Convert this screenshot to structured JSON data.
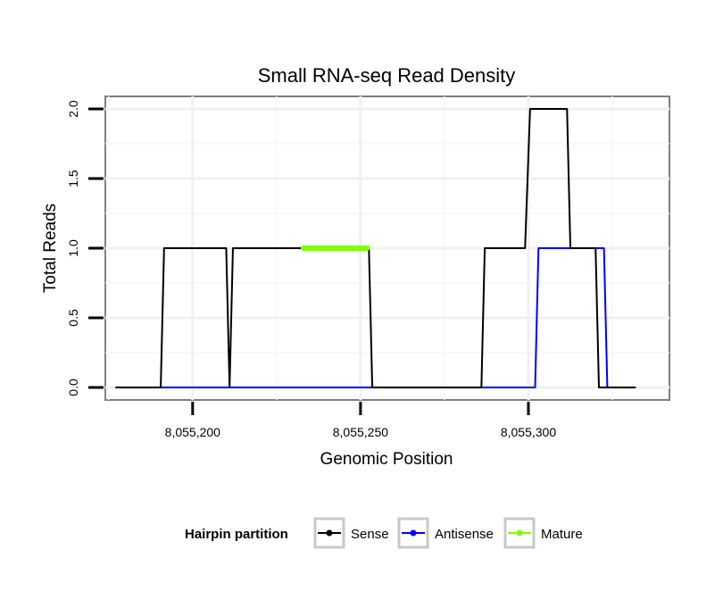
{
  "chart_data": {
    "type": "line",
    "title": "Small RNA-seq Read Density",
    "xlabel": "Genomic Position",
    "ylabel": "Total Reads",
    "xlim": [
      8055174,
      8055342
    ],
    "ylim": [
      -0.09,
      2.09
    ],
    "x_ticks": [
      8055200,
      8055250,
      8055300
    ],
    "x_tick_labels": [
      "8,055,200",
      "8,055,250",
      "8,055,300"
    ],
    "y_ticks": [
      0,
      0.5,
      1,
      1.5,
      2
    ],
    "y_tick_labels": [
      "0.0",
      "0.5",
      "1.0",
      "1.5",
      "2.0"
    ],
    "grid": true,
    "legend": {
      "title": "Hairpin partition",
      "position": "bottom",
      "entries": [
        "Sense",
        "Antisense",
        "Mature"
      ]
    },
    "series": [
      {
        "name": "Sense",
        "color": "#000000",
        "points": [
          [
            8055177,
            0
          ],
          [
            8055190.5,
            0
          ],
          [
            8055191.5,
            1
          ],
          [
            8055210,
            1
          ],
          [
            8055211,
            0
          ],
          [
            8055212,
            1
          ],
          [
            8055252.5,
            1
          ],
          [
            8055253.5,
            0
          ],
          [
            8055286,
            0
          ],
          [
            8055287,
            1
          ],
          [
            8055299,
            1
          ],
          [
            8055300.5,
            2
          ],
          [
            8055311.5,
            2
          ],
          [
            8055312.5,
            1
          ],
          [
            8055320,
            1
          ],
          [
            8055321,
            0
          ],
          [
            8055332,
            0
          ]
        ]
      },
      {
        "name": "Antisense",
        "color": "#0000ff",
        "points": [
          [
            8055190.5,
            0
          ],
          [
            8055302,
            0
          ],
          [
            8055303,
            1
          ],
          [
            8055322.5,
            1
          ],
          [
            8055323.5,
            0
          ]
        ]
      },
      {
        "name": "Mature",
        "color": "#7fff00",
        "points": [
          [
            8055233,
            1
          ],
          [
            8055252,
            1
          ]
        ]
      }
    ]
  }
}
